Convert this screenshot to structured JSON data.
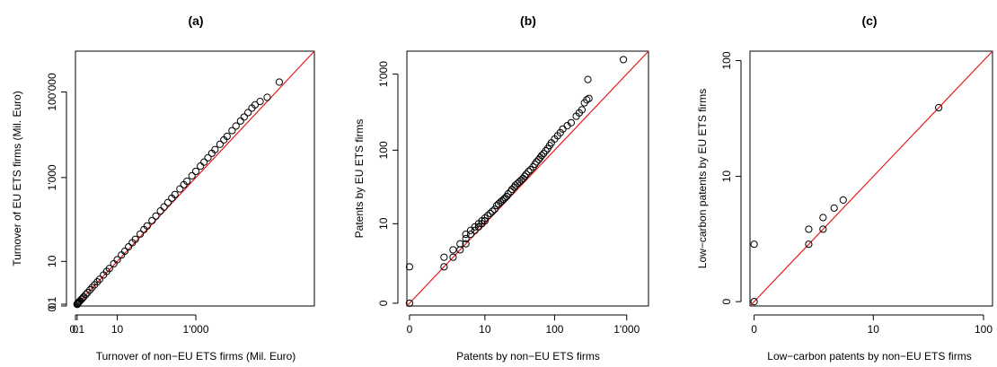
{
  "chart_data": [
    {
      "type": "scatter",
      "title": "(a)",
      "xlabel": "Turnover of non−EU ETS firms (Mil. Euro)",
      "ylabel": "Turnover of EU ETS firms (Mil. Euro)",
      "scale": "log10(1+x)",
      "xlim": [
        -0.001,
        900000
      ],
      "ylim": [
        -0.001,
        900000
      ],
      "xticks": [
        {
          "value": 0,
          "label": "0"
        },
        {
          "value": 0.1,
          "label": "0.1"
        },
        {
          "value": 10,
          "label": "10"
        },
        {
          "value": 1000,
          "label": "1'000"
        }
      ],
      "yticks": [
        {
          "value": 0,
          "label": "0"
        },
        {
          "value": 0.1,
          "label": "0.1"
        },
        {
          "value": 10,
          "label": "10"
        },
        {
          "value": 1000,
          "label": "1'000"
        },
        {
          "value": 100000,
          "label": "100'000"
        }
      ],
      "reference_line": "y = x",
      "reference_color": "#e41a1c",
      "grid": false,
      "points": [
        [
          -0.0035,
          -0.0032
        ],
        [
          -0.0002,
          -0.0008
        ],
        [
          -0.0001,
          -0.0002
        ],
        [
          0.001,
          0
        ],
        [
          0.002,
          0.0015
        ],
        [
          0.003,
          0.0005
        ],
        [
          0.004,
          0.0022
        ],
        [
          0.005,
          0.0055
        ],
        [
          0.006,
          0.008
        ],
        [
          0.008,
          0.01
        ],
        [
          0.01,
          0.013
        ],
        [
          0.012,
          0.016
        ],
        [
          0.015,
          0.02
        ],
        [
          0.02,
          0.026
        ],
        [
          0.025,
          0.031
        ],
        [
          0.03,
          0.036
        ],
        [
          0.04,
          0.045
        ],
        [
          0.05,
          0.056
        ],
        [
          0.06,
          0.066
        ],
        [
          0.07,
          0.077
        ],
        [
          0.08,
          0.087
        ],
        [
          0.1,
          0.107
        ],
        [
          0.12,
          0.128
        ],
        [
          0.15,
          0.16
        ],
        [
          0.2,
          0.21
        ],
        [
          0.25,
          0.262
        ],
        [
          0.3,
          0.315
        ],
        [
          0.4,
          0.42
        ],
        [
          0.5,
          0.52
        ],
        [
          0.6,
          0.63
        ],
        [
          0.8,
          0.84
        ],
        [
          1,
          1.05
        ],
        [
          1.3,
          1.37
        ],
        [
          1.6,
          1.7
        ],
        [
          2,
          2.12
        ],
        [
          2.5,
          2.65
        ],
        [
          3,
          3.2
        ],
        [
          4,
          4.3
        ],
        [
          5,
          5.4
        ],
        [
          6,
          6.5
        ],
        [
          8,
          8.7
        ],
        [
          10,
          11
        ],
        [
          13,
          14.5
        ],
        [
          16,
          18
        ],
        [
          20,
          23
        ],
        [
          25,
          29
        ],
        [
          30,
          35
        ],
        [
          40,
          47
        ],
        [
          50,
          60
        ],
        [
          60,
          73
        ],
        [
          80,
          98
        ],
        [
          100,
          125
        ],
        [
          130,
          165
        ],
        [
          160,
          205
        ],
        [
          200,
          260
        ],
        [
          250,
          330
        ],
        [
          300,
          400
        ],
        [
          400,
          540
        ],
        [
          500,
          680
        ],
        [
          600,
          820
        ],
        [
          800,
          1100
        ],
        [
          1000,
          1400
        ],
        [
          1300,
          1850
        ],
        [
          1600,
          2300
        ],
        [
          2000,
          2900
        ],
        [
          2500,
          3700
        ],
        [
          3000,
          4500
        ],
        [
          4000,
          6000
        ],
        [
          5000,
          7600
        ],
        [
          6000,
          9200
        ],
        [
          8000,
          12500
        ],
        [
          10000,
          16000
        ],
        [
          13000,
          21000
        ],
        [
          16000,
          26000
        ],
        [
          20000,
          33000
        ],
        [
          25000,
          42000
        ],
        [
          30000,
          50000
        ],
        [
          40000,
          60000
        ],
        [
          60000,
          75000
        ],
        [
          120000,
          170000
        ]
      ]
    },
    {
      "type": "scatter",
      "title": "(b)",
      "xlabel": "Patents by non−EU ETS firms",
      "ylabel": "Patents by EU ETS firms",
      "scale": "log10(1+x)",
      "xlim": [
        -0.08,
        2000
      ],
      "ylim": [
        -0.08,
        2000
      ],
      "xticks": [
        {
          "value": 0,
          "label": "0"
        },
        {
          "value": 10,
          "label": "10"
        },
        {
          "value": 100,
          "label": "100"
        },
        {
          "value": 1000,
          "label": "1'000"
        }
      ],
      "yticks": [
        {
          "value": 0,
          "label": "0"
        },
        {
          "value": 10,
          "label": "10"
        },
        {
          "value": 100,
          "label": "100"
        },
        {
          "value": 1000,
          "label": "1'000"
        }
      ],
      "reference_line": "y = x",
      "reference_color": "#e41a1c",
      "grid": false,
      "points": [
        [
          0,
          0
        ],
        [
          0,
          2
        ],
        [
          2,
          2
        ],
        [
          2,
          3
        ],
        [
          3,
          3
        ],
        [
          3,
          4
        ],
        [
          4,
          4
        ],
        [
          4,
          5
        ],
        [
          5,
          5
        ],
        [
          5,
          6
        ],
        [
          5,
          7
        ],
        [
          6,
          7
        ],
        [
          6,
          8
        ],
        [
          7,
          8
        ],
        [
          7,
          9
        ],
        [
          8,
          9
        ],
        [
          8,
          10
        ],
        [
          9,
          10
        ],
        [
          9,
          11
        ],
        [
          10,
          11
        ],
        [
          10,
          12
        ],
        [
          11,
          13
        ],
        [
          12,
          14
        ],
        [
          13,
          15
        ],
        [
          14,
          16
        ],
        [
          15,
          18
        ],
        [
          16,
          19
        ],
        [
          17,
          20
        ],
        [
          18,
          21
        ],
        [
          19,
          22
        ],
        [
          20,
          23
        ],
        [
          21,
          24
        ],
        [
          22,
          26
        ],
        [
          24,
          28
        ],
        [
          25,
          30
        ],
        [
          27,
          32
        ],
        [
          28,
          34
        ],
        [
          30,
          36
        ],
        [
          32,
          38
        ],
        [
          34,
          40
        ],
        [
          36,
          42
        ],
        [
          38,
          45
        ],
        [
          40,
          48
        ],
        [
          43,
          52
        ],
        [
          46,
          55
        ],
        [
          50,
          60
        ],
        [
          53,
          65
        ],
        [
          56,
          70
        ],
        [
          60,
          75
        ],
        [
          63,
          80
        ],
        [
          66,
          85
        ],
        [
          70,
          90
        ],
        [
          75,
          98
        ],
        [
          80,
          105
        ],
        [
          85,
          115
        ],
        [
          90,
          125
        ],
        [
          100,
          140
        ],
        [
          110,
          155
        ],
        [
          120,
          170
        ],
        [
          130,
          190
        ],
        [
          150,
          210
        ],
        [
          170,
          230
        ],
        [
          200,
          280
        ],
        [
          220,
          310
        ],
        [
          240,
          340
        ],
        [
          260,
          420
        ],
        [
          280,
          460
        ],
        [
          300,
          480
        ],
        [
          290,
          850
        ],
        [
          900,
          1550
        ]
      ]
    },
    {
      "type": "scatter",
      "title": "(c)",
      "xlabel": "Low−carbon patents by non−EU ETS firms",
      "ylabel": "Low−carbon patents by EU ETS firms",
      "scale": "log10(1+x)",
      "xlim": [
        -0.08,
        120
      ],
      "ylim": [
        -0.08,
        120
      ],
      "xticks": [
        {
          "value": 0,
          "label": "0"
        },
        {
          "value": 10,
          "label": "10"
        },
        {
          "value": 100,
          "label": "100"
        }
      ],
      "yticks": [
        {
          "value": 0,
          "label": "0"
        },
        {
          "value": 10,
          "label": "10"
        },
        {
          "value": 100,
          "label": "100"
        }
      ],
      "reference_line": "y = x",
      "reference_color": "#e41a1c",
      "grid": false,
      "points": [
        [
          0,
          0
        ],
        [
          0,
          2
        ],
        [
          2,
          2
        ],
        [
          2,
          3
        ],
        [
          3,
          3
        ],
        [
          3,
          4
        ],
        [
          4,
          5
        ],
        [
          5,
          6
        ],
        [
          40,
          40
        ]
      ]
    }
  ]
}
